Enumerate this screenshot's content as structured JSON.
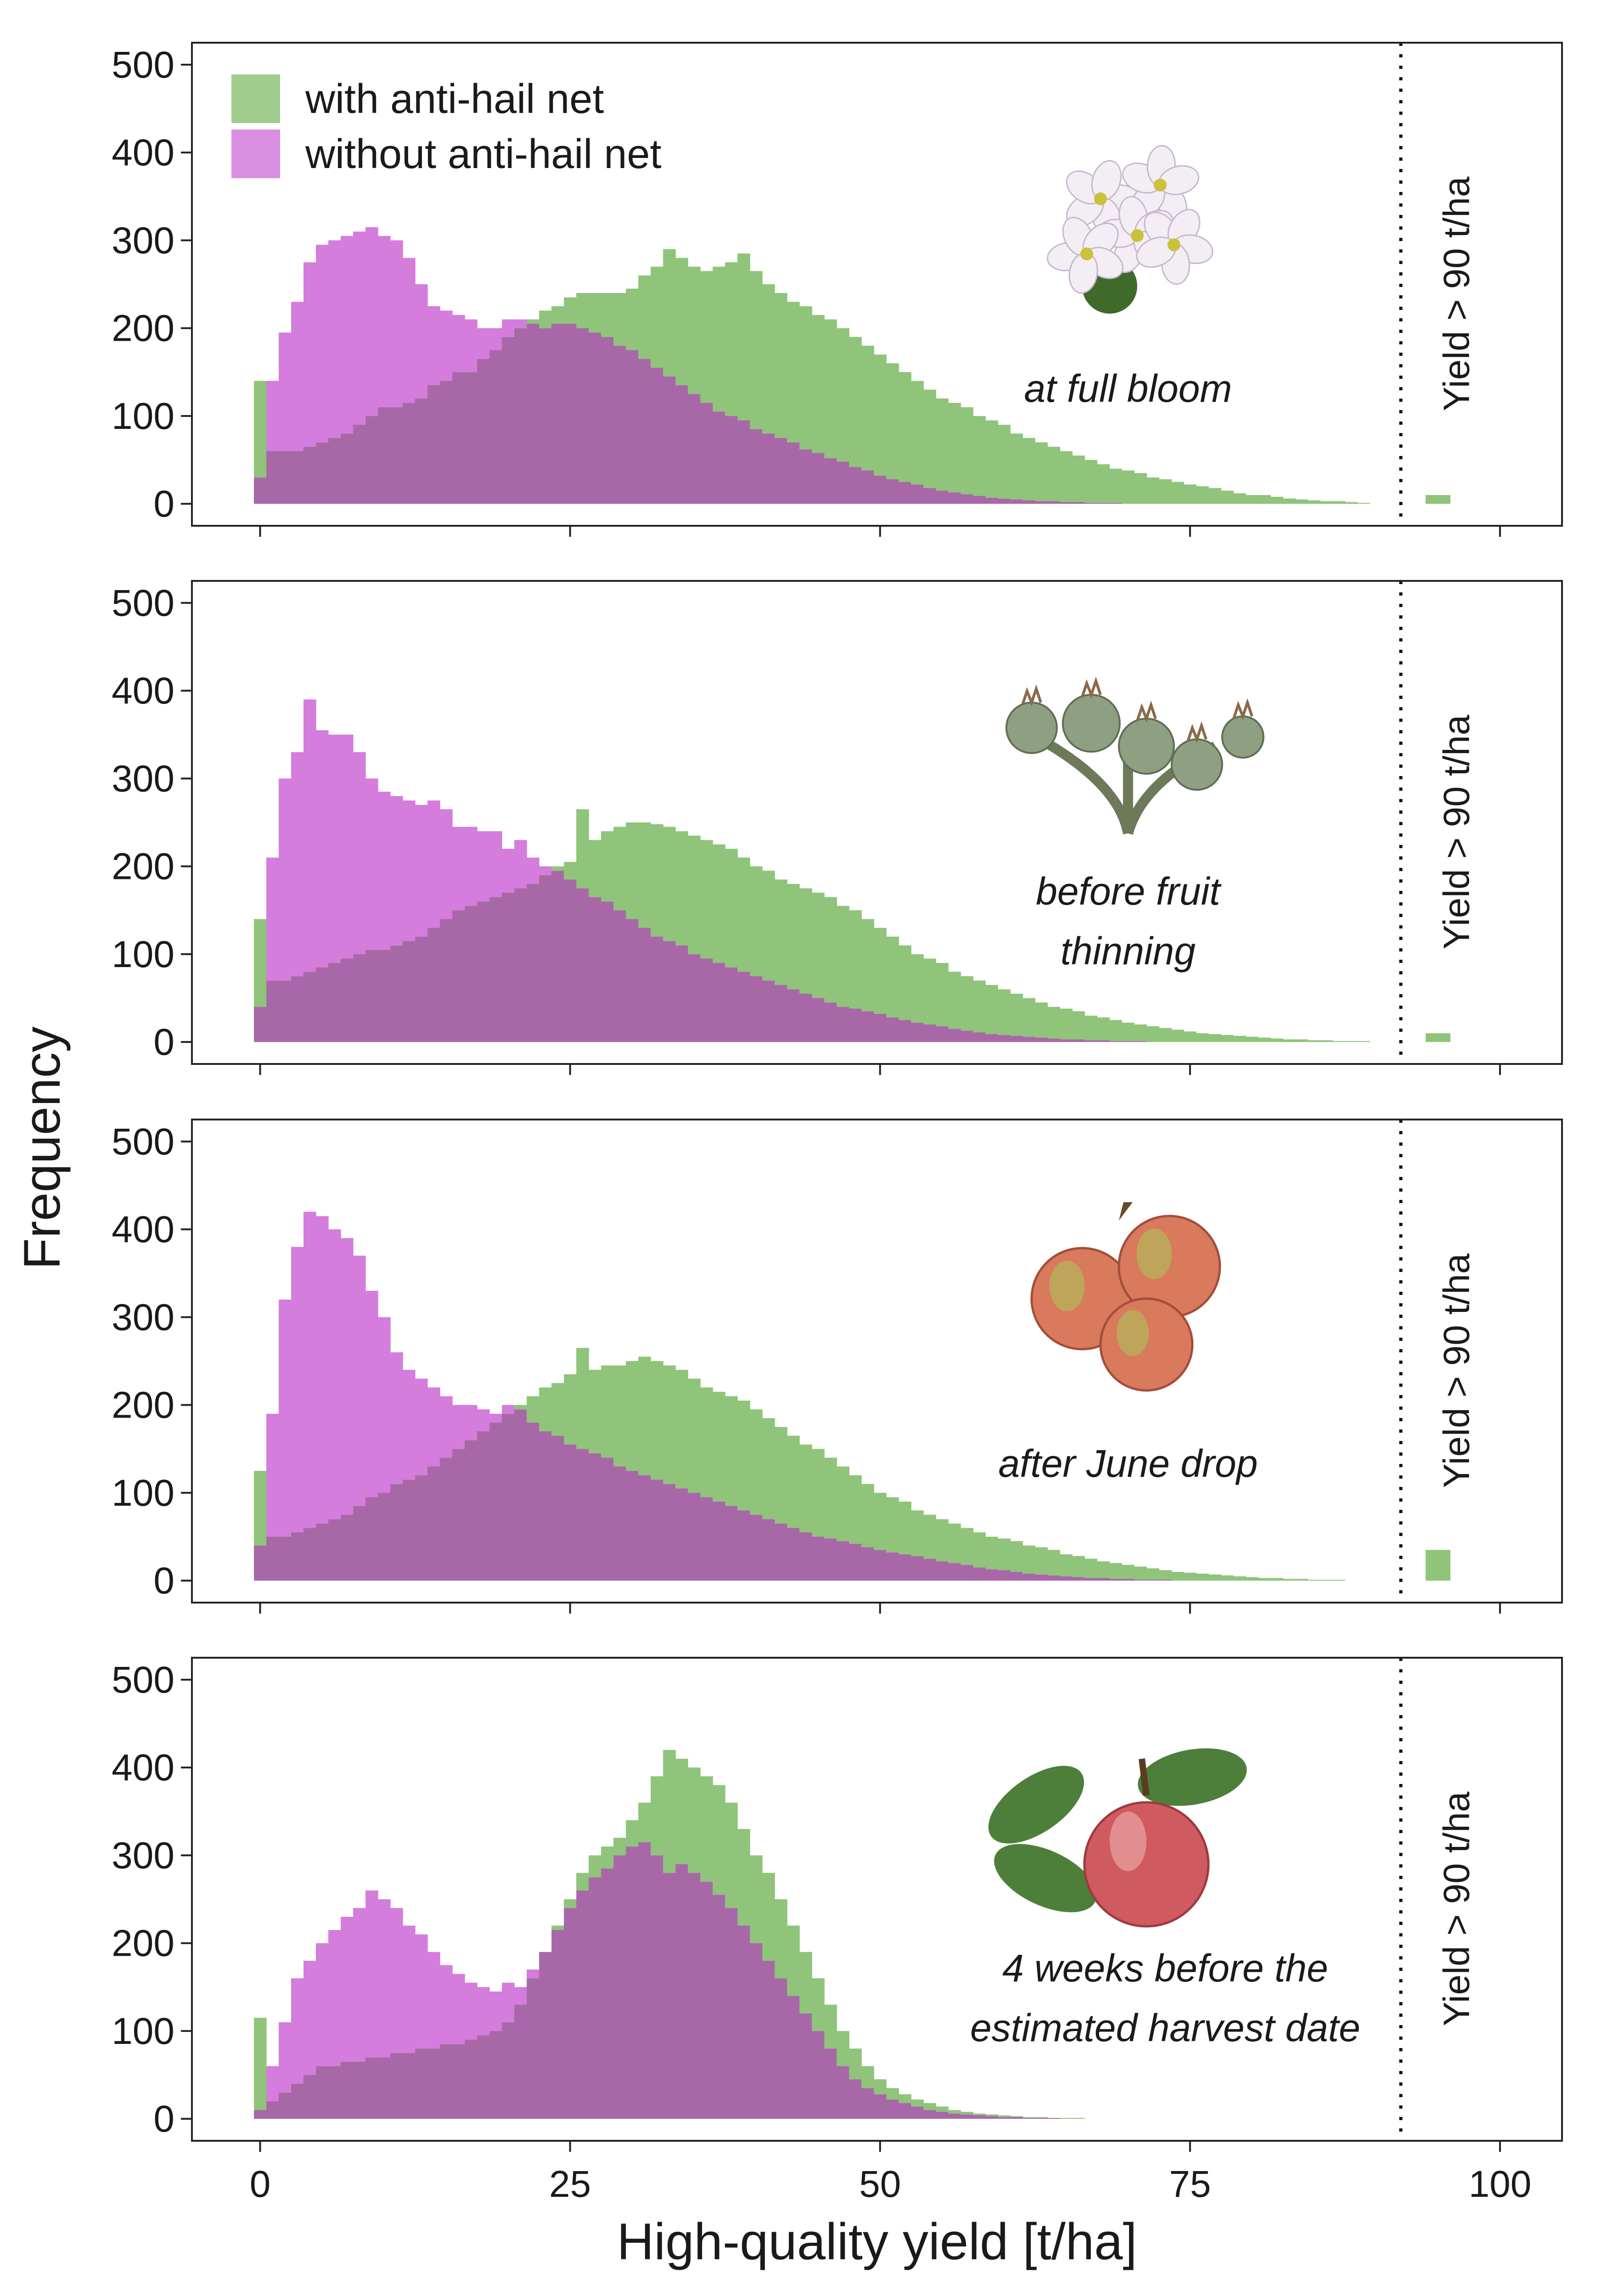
{
  "chart_data": {
    "type": "bar",
    "subtype": "overlapping-histogram",
    "xlabel": "High-quality yield [t/ha]",
    "ylabel": "Frequency",
    "xticks": [
      0,
      25,
      50,
      75,
      100
    ],
    "yticks": [
      0,
      100,
      200,
      300,
      400,
      500
    ],
    "xlim": [
      -5.5,
      105
    ],
    "ylim": [
      -25,
      525
    ],
    "bin_width": 1,
    "bin_start": -0.5,
    "cutoff_line": 92,
    "overflow_bin_x": 95,
    "legend": {
      "position": "top-left",
      "entries": [
        {
          "label": "with anti-hail net",
          "color": "#8fc47a"
        },
        {
          "label": "without anti-hail net",
          "color": "#d47ddc"
        }
      ]
    },
    "colors": {
      "with_net": "#8fc47a",
      "without_net": "#d47ddc",
      "overlap": "#a868a8"
    },
    "panels": [
      {
        "annotation": [
          "at full bloom"
        ],
        "icon": "apple-blossom-icon",
        "cut_label": "Yield > 90 t/ha",
        "series": [
          {
            "name": "with anti-hail net",
            "overflow": 10,
            "values": [
              140,
              60,
              60,
              60,
              65,
              70,
              75,
              80,
              90,
              100,
              110,
              110,
              115,
              120,
              135,
              140,
              150,
              150,
              165,
              175,
              190,
              200,
              210,
              220,
              225,
              235,
              240,
              240,
              240,
              240,
              245,
              260,
              270,
              290,
              280,
              270,
              265,
              270,
              275,
              285,
              265,
              250,
              240,
              230,
              225,
              215,
              210,
              200,
              190,
              180,
              170,
              160,
              150,
              140,
              130,
              120,
              115,
              110,
              100,
              95,
              90,
              80,
              75,
              70,
              65,
              60,
              55,
              50,
              45,
              40,
              38,
              35,
              30,
              28,
              25,
              22,
              20,
              18,
              15,
              12,
              10,
              10,
              8,
              6,
              5,
              4,
              3,
              3,
              2,
              1
            ]
          },
          {
            "name": "without anti-hail net",
            "overflow": 0,
            "values": [
              30,
              140,
              195,
              230,
              275,
              295,
              300,
              305,
              310,
              315,
              305,
              300,
              280,
              250,
              225,
              220,
              215,
              210,
              200,
              200,
              210,
              210,
              205,
              200,
              205,
              205,
              200,
              195,
              190,
              180,
              175,
              165,
              155,
              145,
              135,
              125,
              115,
              105,
              100,
              95,
              85,
              80,
              75,
              70,
              62,
              58,
              52,
              48,
              42,
              38,
              32,
              28,
              25,
              22,
              18,
              15,
              13,
              11,
              9,
              7,
              6,
              5,
              4,
              3,
              3,
              2,
              2,
              1,
              1,
              1,
              0,
              0,
              0,
              0,
              0,
              0,
              0,
              0,
              0,
              0,
              0,
              0,
              0,
              0,
              0,
              0,
              0,
              0,
              0,
              0
            ]
          }
        ]
      },
      {
        "annotation": [
          "before fruit",
          "thinning"
        ],
        "icon": "fruitlet-cluster-icon",
        "cut_label": "Yield > 90 t/ha",
        "series": [
          {
            "name": "with anti-hail net",
            "overflow": 10,
            "values": [
              140,
              70,
              70,
              75,
              80,
              85,
              90,
              95,
              100,
              105,
              105,
              110,
              115,
              120,
              130,
              140,
              150,
              155,
              160,
              165,
              170,
              175,
              180,
              190,
              200,
              205,
              265,
              230,
              240,
              245,
              250,
              250,
              248,
              245,
              240,
              235,
              230,
              225,
              220,
              210,
              200,
              195,
              185,
              180,
              175,
              170,
              165,
              155,
              150,
              140,
              130,
              120,
              110,
              100,
              95,
              90,
              80,
              75,
              70,
              65,
              60,
              55,
              50,
              45,
              40,
              38,
              35,
              30,
              28,
              25,
              22,
              20,
              18,
              16,
              14,
              12,
              10,
              9,
              8,
              7,
              6,
              5,
              4,
              3,
              3,
              2,
              2,
              1,
              1,
              1
            ]
          },
          {
            "name": "without anti-hail net",
            "overflow": 0,
            "values": [
              40,
              210,
              300,
              330,
              390,
              355,
              350,
              350,
              330,
              300,
              285,
              280,
              275,
              270,
              275,
              265,
              245,
              245,
              240,
              240,
              220,
              230,
              210,
              200,
              195,
              185,
              175,
              165,
              160,
              150,
              140,
              130,
              120,
              115,
              110,
              100,
              95,
              90,
              85,
              80,
              75,
              70,
              65,
              60,
              55,
              50,
              45,
              40,
              38,
              35,
              32,
              28,
              25,
              22,
              20,
              18,
              15,
              13,
              11,
              9,
              8,
              7,
              6,
              5,
              4,
              3,
              3,
              2,
              2,
              1,
              1,
              1,
              0,
              0,
              0,
              0,
              0,
              0,
              0,
              0,
              0,
              0,
              0,
              0,
              0,
              0,
              0,
              0,
              0,
              0
            ]
          }
        ]
      },
      {
        "annotation": [
          "after June drop"
        ],
        "icon": "young-apples-icon",
        "cut_label": "Yield > 90 t/ha",
        "series": [
          {
            "name": "with anti-hail net",
            "overflow": 35,
            "values": [
              125,
              50,
              50,
              55,
              60,
              65,
              70,
              75,
              85,
              95,
              100,
              110,
              115,
              120,
              130,
              140,
              150,
              160,
              170,
              180,
              190,
              200,
              210,
              220,
              225,
              235,
              265,
              240,
              245,
              245,
              250,
              255,
              250,
              245,
              240,
              230,
              220,
              215,
              210,
              205,
              195,
              185,
              175,
              165,
              155,
              150,
              140,
              130,
              120,
              110,
              100,
              95,
              90,
              80,
              75,
              70,
              65,
              60,
              55,
              50,
              48,
              45,
              40,
              38,
              35,
              30,
              28,
              25,
              22,
              20,
              18,
              16,
              14,
              12,
              10,
              9,
              8,
              7,
              6,
              5,
              4,
              3,
              3,
              2,
              2,
              1,
              1,
              1,
              0,
              0
            ]
          },
          {
            "name": "without anti-hail net",
            "overflow": 0,
            "values": [
              40,
              190,
              320,
              380,
              420,
              415,
              400,
              390,
              370,
              330,
              300,
              260,
              240,
              230,
              220,
              210,
              200,
              200,
              195,
              190,
              200,
              195,
              180,
              170,
              165,
              155,
              150,
              145,
              140,
              130,
              125,
              120,
              115,
              110,
              105,
              100,
              95,
              90,
              85,
              80,
              75,
              70,
              65,
              60,
              55,
              50,
              48,
              45,
              42,
              38,
              35,
              32,
              30,
              28,
              25,
              22,
              20,
              18,
              15,
              13,
              12,
              10,
              8,
              7,
              6,
              5,
              4,
              3,
              3,
              2,
              2,
              1,
              1,
              1,
              0,
              0,
              0,
              0,
              0,
              0,
              0,
              0,
              0,
              0,
              0,
              0,
              0,
              0,
              0,
              0
            ]
          }
        ]
      },
      {
        "annotation": [
          "4 weeks before the",
          "estimated harvest date"
        ],
        "icon": "ripe-apple-icon",
        "cut_label": "Yield > 90 t/ha",
        "series": [
          {
            "name": "with anti-hail net",
            "overflow": 0,
            "values": [
              115,
              20,
              30,
              40,
              50,
              60,
              60,
              65,
              65,
              70,
              70,
              75,
              75,
              80,
              80,
              85,
              85,
              90,
              95,
              100,
              110,
              130,
              160,
              190,
              220,
              250,
              280,
              300,
              310,
              320,
              340,
              360,
              390,
              420,
              410,
              400,
              390,
              380,
              360,
              330,
              300,
              280,
              250,
              220,
              190,
              160,
              130,
              100,
              80,
              60,
              45,
              35,
              28,
              22,
              18,
              14,
              10,
              8,
              6,
              5,
              4,
              3,
              2,
              2,
              1,
              1,
              1,
              0,
              0,
              0,
              0,
              0,
              0,
              0,
              0,
              0,
              0,
              0,
              0,
              0,
              0,
              0,
              0,
              0,
              0,
              0,
              0,
              0,
              0,
              0
            ]
          },
          {
            "name": "without anti-hail net",
            "overflow": 0,
            "values": [
              10,
              60,
              110,
              160,
              180,
              200,
              215,
              230,
              240,
              260,
              250,
              240,
              220,
              210,
              190,
              175,
              165,
              155,
              150,
              145,
              155,
              150,
              170,
              190,
              215,
              240,
              260,
              275,
              285,
              300,
              310,
              315,
              300,
              280,
              290,
              280,
              270,
              255,
              240,
              220,
              200,
              180,
              160,
              140,
              120,
              100,
              80,
              60,
              45,
              35,
              28,
              22,
              18,
              14,
              10,
              8,
              6,
              5,
              4,
              3,
              2,
              2,
              1,
              1,
              1,
              0,
              0,
              0,
              0,
              0,
              0,
              0,
              0,
              0,
              0,
              0,
              0,
              0,
              0,
              0,
              0,
              0,
              0,
              0,
              0,
              0,
              0,
              0,
              0,
              0
            ]
          }
        ]
      }
    ]
  }
}
